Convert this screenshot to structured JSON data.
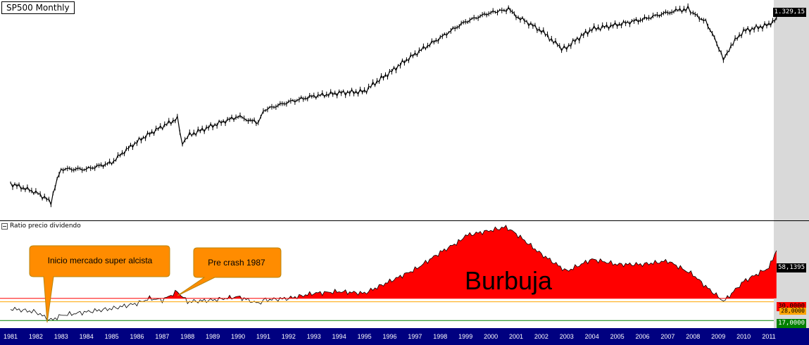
{
  "title": "SP500 Monthly",
  "indicator_label": "Ratio precio dividendo",
  "annotations": {
    "callout1": "Inicio mercado super alcista",
    "callout2": "Pre crash 1987",
    "bubble": "Burbuja"
  },
  "price_tags": {
    "last_price": "1.329,15",
    "ratio_last": "58,1395",
    "level_30": "30,0000",
    "level_28": "28,0000",
    "level_17": "17,0000"
  },
  "colors": {
    "bubble_fill": "#ff0000",
    "callout_fill": "#ff8c00",
    "axis_bar": "#000080",
    "level_30": "#ff0000",
    "level_28": "#ffa500",
    "level_17": "#008000"
  },
  "chart_data": [
    {
      "type": "line",
      "title": "SP500 Monthly",
      "x": [
        1981,
        1982,
        1982.6,
        1983,
        1984,
        1985,
        1986,
        1987.6,
        1987.8,
        1988,
        1989,
        1990,
        1990.8,
        1991,
        1992,
        1993,
        1994,
        1995,
        1996,
        1997,
        1998,
        1999,
        2000,
        2000.7,
        2001,
        2002,
        2002.8,
        2003,
        2004,
        2005,
        2006,
        2007,
        2007.8,
        2008,
        2008.5,
        2009.2,
        2009.5,
        2010,
        2011,
        2011.3
      ],
      "values": [
        135,
        120,
        105,
        165,
        165,
        180,
        240,
        330,
        230,
        260,
        300,
        340,
        310,
        370,
        415,
        450,
        470,
        480,
        620,
        800,
        1000,
        1250,
        1420,
        1480,
        1350,
        1100,
        860,
        880,
        1130,
        1200,
        1290,
        1420,
        1500,
        1400,
        1250,
        740,
        900,
        1100,
        1200,
        1329.15
      ],
      "last_value": "1.329,15"
    },
    {
      "type": "area",
      "title": "Ratio precio dividendo",
      "x": [
        1981,
        1982,
        1982.6,
        1983,
        1984,
        1985,
        1986,
        1986.5,
        1987,
        1987.6,
        1988,
        1989,
        1990,
        1990.8,
        1991,
        1992,
        1993,
        1994,
        1995,
        1996,
        1997,
        1998,
        1998.8,
        1999,
        2000,
        2000.6,
        2001,
        2001.5,
        2002,
        2003,
        2004,
        2005,
        2006,
        2007,
        2007.5,
        2008,
        2008.5,
        2009,
        2009.2,
        2010,
        2011,
        2011.3
      ],
      "values": [
        24,
        22,
        17,
        20,
        22,
        24,
        27,
        30,
        29,
        34,
        28,
        29,
        31,
        27,
        29,
        30,
        33,
        34,
        33,
        40,
        47,
        57,
        64,
        67,
        70,
        72,
        68,
        62,
        56,
        46,
        53,
        50,
        50,
        52,
        48,
        44,
        37,
        31,
        28,
        40,
        48,
        58.1395
      ],
      "threshold_levels": [
        30,
        28,
        17
      ],
      "last_value": "58,1395"
    }
  ],
  "x_axis": {
    "ticks": [
      "1981",
      "1982",
      "1983",
      "1984",
      "1985",
      "1986",
      "1987",
      "1988",
      "1989",
      "1990",
      "1991",
      "1992",
      "1993",
      "1994",
      "1995",
      "1996",
      "1997",
      "1998",
      "1999",
      "2000",
      "2001",
      "2002",
      "2003",
      "2004",
      "2005",
      "2006",
      "2007",
      "2008",
      "2009",
      "2010",
      "2011"
    ]
  }
}
